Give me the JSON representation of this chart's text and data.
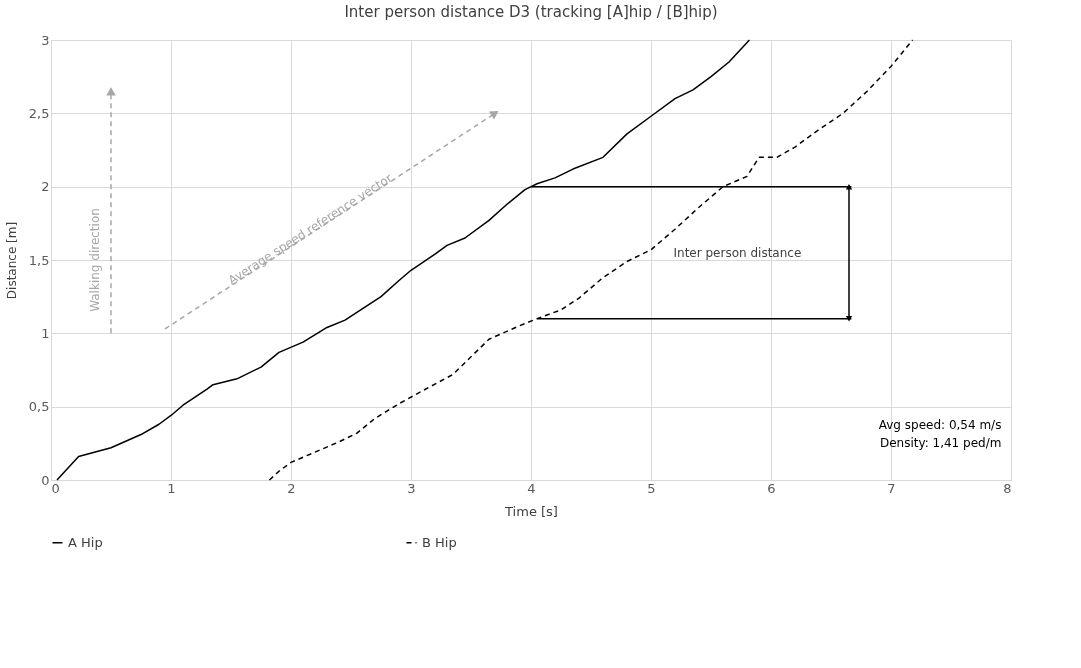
{
  "chart_data": {
    "type": "line",
    "title": "Inter person distance D3 (tracking [A]hip / [B]hip)",
    "xlabel": "Time [s]",
    "ylabel": "Distance [m]",
    "xlim": [
      0,
      8
    ],
    "xticks": [
      0,
      1,
      2,
      3,
      4,
      5,
      6,
      7,
      8
    ],
    "ylim": [
      0,
      3
    ],
    "yticks": [
      0,
      {
        "value": 0.5,
        "label": "0,5"
      },
      1,
      {
        "value": 1.5,
        "label": "1,5"
      },
      2,
      {
        "value": 2.5,
        "label": "2,5"
      },
      3
    ],
    "grid": true,
    "legend": "bottom",
    "marker": "none",
    "series": [
      {
        "name": "A Hip",
        "color": "#000000",
        "line_style": "solid",
        "x": [
          0.05,
          0.23,
          0.5,
          0.75,
          0.9,
          1.0,
          1.1,
          1.3,
          1.35,
          1.55,
          1.75,
          1.9,
          2.1,
          2.3,
          2.45,
          2.6,
          2.75,
          2.9,
          3.0,
          3.2,
          3.3,
          3.45,
          3.65,
          3.8,
          3.95,
          4.05,
          4.2,
          4.35,
          4.6,
          4.8,
          5.0,
          5.2,
          5.35,
          5.5,
          5.65,
          5.82
        ],
        "values": [
          0,
          0.16,
          0.22,
          0.31,
          0.38,
          0.44,
          0.51,
          0.62,
          0.65,
          0.69,
          0.77,
          0.87,
          0.94,
          1.04,
          1.09,
          1.17,
          1.25,
          1.36,
          1.43,
          1.54,
          1.6,
          1.65,
          1.77,
          1.88,
          1.98,
          2.02,
          2.06,
          2.12,
          2.2,
          2.36,
          2.48,
          2.6,
          2.66,
          2.75,
          2.85,
          3.0
        ]
      },
      {
        "name": "B Hip",
        "color": "#000000",
        "line_style": "dashed",
        "x": [
          1.82,
          1.9,
          2.0,
          2.2,
          2.4,
          2.55,
          2.7,
          2.9,
          3.1,
          3.35,
          3.5,
          3.65,
          3.9,
          4.05,
          4.25,
          4.4,
          4.6,
          4.8,
          5.0,
          5.2,
          5.4,
          5.6,
          5.8,
          5.9,
          6.05,
          6.2,
          6.4,
          6.6,
          6.8,
          7.0,
          7.18
        ],
        "values": [
          0,
          0.06,
          0.12,
          0.19,
          0.26,
          0.32,
          0.42,
          0.52,
          0.61,
          0.72,
          0.84,
          0.96,
          1.05,
          1.1,
          1.16,
          1.24,
          1.38,
          1.49,
          1.57,
          1.71,
          1.86,
          2.0,
          2.07,
          2.2,
          2.2,
          2.27,
          2.39,
          2.5,
          2.65,
          2.82,
          3.0
        ]
      },
      {
        "color": "#000000",
        "line_style": "solid",
        "x": [
          4.0,
          6.67
        ],
        "values": [
          2.0,
          2.0
        ]
      },
      {
        "color": "#000000",
        "line_style": "solid",
        "x": [
          4.05,
          6.67
        ],
        "values": [
          1.1,
          1.1
        ]
      },
      {
        "color": "#000000",
        "line_style": "solid",
        "marker": "triangle",
        "x": [
          6.65,
          6.65
        ],
        "values": [
          1.1,
          2.0
        ]
      },
      {
        "color": "#a6a6a6",
        "line_style": "dashed",
        "marker": "triangle",
        "x": [
          0.5,
          0.5
        ],
        "values": [
          1.0,
          2.65
        ]
      },
      {
        "color": "#a6a6a6",
        "line_style": "dashed",
        "marker": "triangle",
        "x": [
          0.95,
          3.7
        ],
        "values": [
          1.03,
          2.5
        ]
      }
    ],
    "annotations": [
      "Inter person distance",
      "Walking direction",
      "Average speed reference vector",
      "Avg speed: 0,54 m/s",
      "Density: 1,41 ped/m"
    ]
  }
}
